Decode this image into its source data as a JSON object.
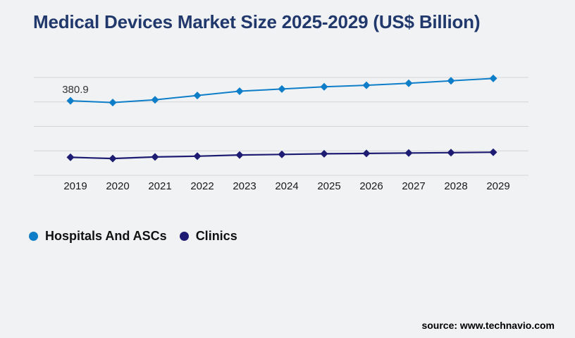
{
  "title": "Medical Devices Market Size 2025-2029 (US$ Billion)",
  "source": "source: www.technavio.com",
  "chart_data": {
    "type": "line",
    "title": "Medical Devices Market Size 2025-2029 (US$ Billion)",
    "categories": [
      "2019",
      "2020",
      "2021",
      "2022",
      "2023",
      "2024",
      "2025",
      "2026",
      "2027",
      "2028",
      "2029"
    ],
    "series": [
      {
        "name": "Hospitals And ASCs",
        "color": "#0f7ec9",
        "marker": "diamond",
        "values": [
          380.9,
          372,
          386,
          408,
          430,
          441,
          452,
          460,
          470,
          483,
          495
        ]
      },
      {
        "name": "Clinics",
        "color": "#1e1c72",
        "marker": "diamond",
        "values": [
          92,
          86,
          94,
          98,
          104,
          107,
          110,
          112,
          114,
          116,
          118
        ]
      }
    ],
    "xlabel": "",
    "ylabel": "",
    "ylim": [
      0,
      500
    ],
    "grid_interval": 125,
    "grid_on": true,
    "y_axis_labels_shown": false,
    "legend_position": "bottom-left",
    "point_label": {
      "series": 0,
      "index": 0,
      "text": "380.9"
    }
  },
  "colors": {
    "background": "#f1f2f4",
    "gridline": "#d5d5d8",
    "title_text": "#20386b",
    "axis_text": "#1a1a1a",
    "point_label_text": "#333333",
    "legend_text": "#111111",
    "source_text": "#000000"
  }
}
